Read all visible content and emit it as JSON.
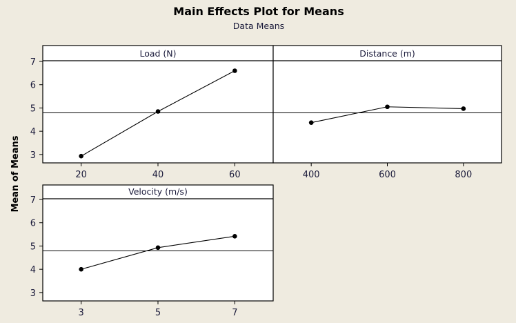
{
  "chart_data": {
    "type": "line",
    "title": "Main Effects Plot for Means",
    "subtitle": "Data Means",
    "ylabel": "Mean of Means",
    "ylim": [
      2.64,
      7.03
    ],
    "yticks": [
      3,
      4,
      5,
      6,
      7
    ],
    "grand_mean": 4.79,
    "grid": false,
    "panels": [
      {
        "name": "Load (N)",
        "x": [
          20,
          40,
          60
        ],
        "x_labels": [
          "20",
          "40",
          "60"
        ],
        "values": [
          2.93,
          4.85,
          6.6
        ],
        "xlim": [
          10,
          70
        ]
      },
      {
        "name": "Distance (m)",
        "x": [
          400,
          600,
          800
        ],
        "x_labels": [
          "400",
          "600",
          "800"
        ],
        "values": [
          4.37,
          5.05,
          4.97
        ],
        "xlim": [
          300,
          900
        ]
      },
      {
        "name": "Velocity (m/s)",
        "x": [
          3,
          5,
          7
        ],
        "x_labels": [
          "3",
          "5",
          "7"
        ],
        "values": [
          4.0,
          4.93,
          5.42
        ],
        "xlim": [
          2,
          8
        ]
      }
    ]
  }
}
